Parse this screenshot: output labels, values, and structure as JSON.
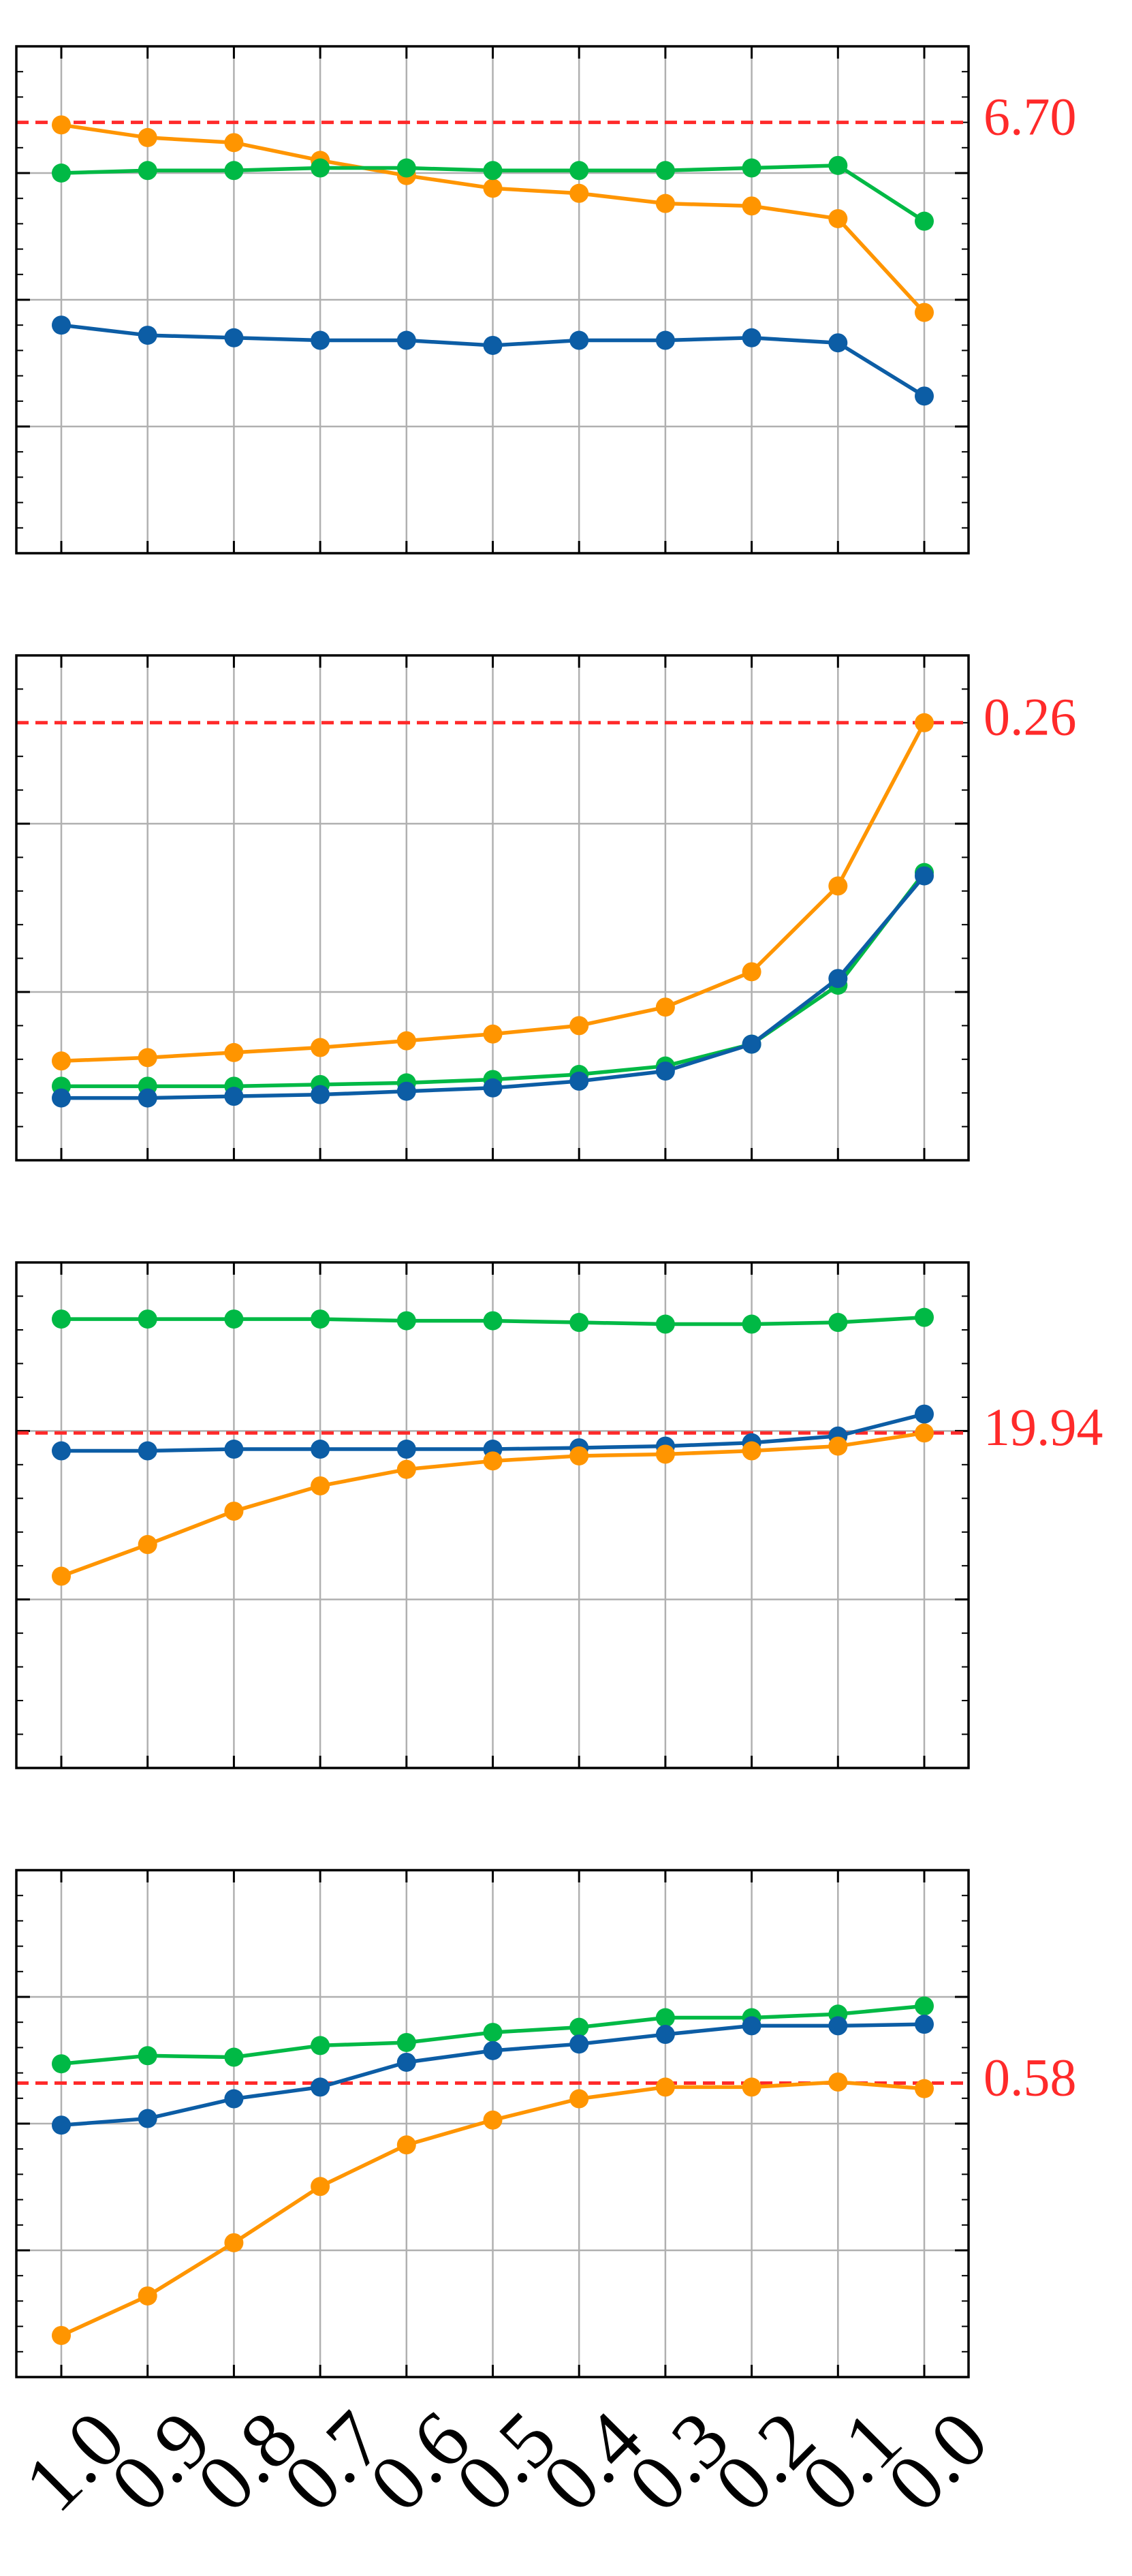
{
  "chart_data": [
    {
      "type": "line",
      "ylim": [
        5.0,
        7.0
      ],
      "yticks": [
        5.5,
        6.0,
        6.5
      ],
      "grid": true,
      "hline": {
        "value": 6.7,
        "label": "6.70",
        "color": "#ff2a2a"
      },
      "series": [
        {
          "color": "#ff9500",
          "values": [
            6.69,
            6.64,
            6.62,
            6.55,
            6.49,
            6.44,
            6.42,
            6.38,
            6.37,
            6.32,
            5.95
          ]
        },
        {
          "color": "#00b945",
          "values": [
            6.5,
            6.51,
            6.51,
            6.52,
            6.52,
            6.51,
            6.51,
            6.51,
            6.52,
            6.53,
            6.31
          ]
        },
        {
          "color": "#0c5da5",
          "values": [
            5.9,
            5.86,
            5.85,
            5.84,
            5.84,
            5.82,
            5.84,
            5.84,
            5.85,
            5.83,
            5.62
          ]
        }
      ]
    },
    {
      "type": "line",
      "ylim": [
        0.0,
        0.3
      ],
      "yticks": [
        0.1,
        0.2
      ],
      "grid": true,
      "hline": {
        "value": 0.26,
        "label": "0.26",
        "color": "#ff2a2a"
      },
      "series": [
        {
          "color": "#ff9500",
          "values": [
            0.059,
            0.061,
            0.064,
            0.067,
            0.071,
            0.075,
            0.08,
            0.091,
            0.112,
            0.163,
            0.26
          ]
        },
        {
          "color": "#00b945",
          "values": [
            0.044,
            0.044,
            0.044,
            0.045,
            0.046,
            0.048,
            0.051,
            0.056,
            0.069,
            0.104,
            0.171
          ]
        },
        {
          "color": "#0c5da5",
          "values": [
            0.037,
            0.037,
            0.038,
            0.039,
            0.041,
            0.043,
            0.047,
            0.053,
            0.069,
            0.108,
            0.169
          ]
        }
      ]
    },
    {
      "type": "line",
      "ylim": [
        10,
        25
      ],
      "yticks": [
        15,
        20
      ],
      "grid": true,
      "hline": {
        "value": 19.94,
        "label": "19.94",
        "color": "#ff2a2a"
      },
      "series": [
        {
          "color": "#00b945",
          "values": [
            23.32,
            23.32,
            23.32,
            23.32,
            23.27,
            23.27,
            23.22,
            23.17,
            23.17,
            23.22,
            23.37
          ]
        },
        {
          "color": "#0c5da5",
          "values": [
            19.41,
            19.41,
            19.46,
            19.46,
            19.46,
            19.46,
            19.5,
            19.55,
            19.65,
            19.85,
            20.5
          ]
        },
        {
          "color": "#ff9500",
          "values": [
            15.69,
            16.63,
            17.62,
            18.37,
            18.86,
            19.11,
            19.26,
            19.31,
            19.41,
            19.55,
            19.94
          ]
        }
      ]
    },
    {
      "type": "line",
      "ylim": [
        0.0,
        1.0
      ],
      "yticks": [
        0.25,
        0.5,
        0.75
      ],
      "grid": true,
      "hline": {
        "value": 0.58,
        "label": "0.58",
        "color": "#ff2a2a"
      },
      "categories": [
        "1.0",
        "0.9",
        "0.8",
        "0.7",
        "0.6",
        "0.5",
        "0.4",
        "0.3",
        "0.2",
        "0.1",
        "0.0"
      ],
      "series": [
        {
          "color": "#00b945",
          "values": [
            0.618,
            0.634,
            0.631,
            0.654,
            0.66,
            0.68,
            0.69,
            0.709,
            0.709,
            0.716,
            0.732
          ]
        },
        {
          "color": "#0c5da5",
          "values": [
            0.497,
            0.51,
            0.549,
            0.572,
            0.621,
            0.644,
            0.657,
            0.676,
            0.693,
            0.693,
            0.696
          ]
        },
        {
          "color": "#ff9500",
          "values": [
            0.082,
            0.16,
            0.265,
            0.376,
            0.458,
            0.507,
            0.549,
            0.572,
            0.572,
            0.582,
            0.569
          ]
        }
      ]
    }
  ]
}
